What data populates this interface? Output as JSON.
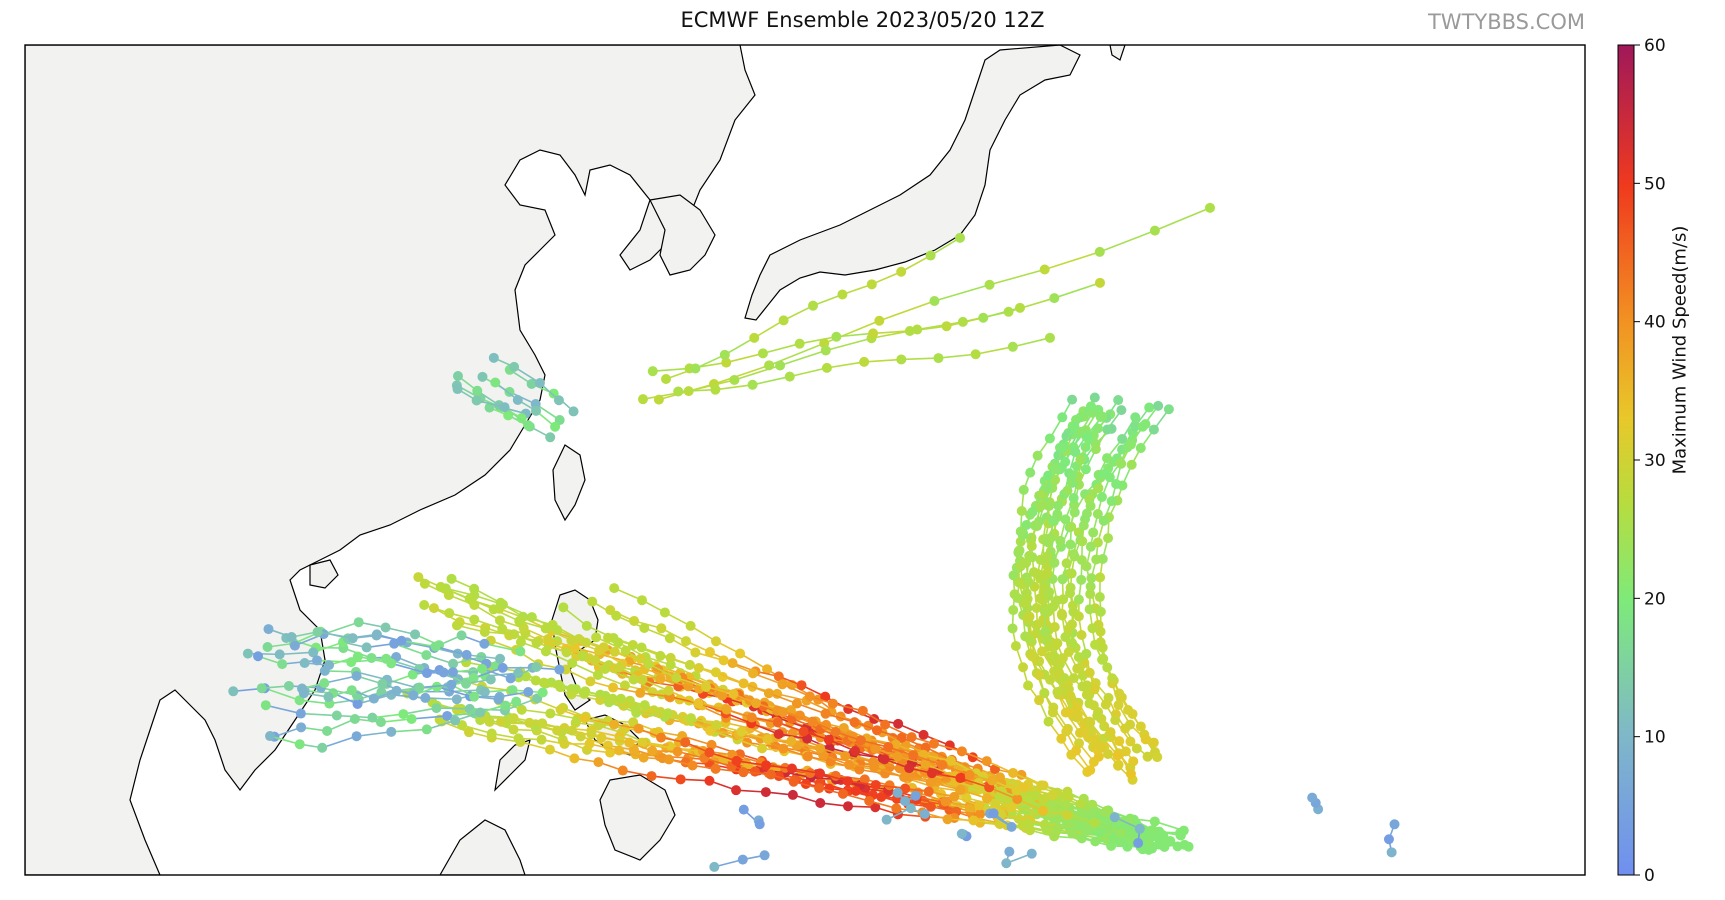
{
  "title": "ECMWF Ensemble 2023/05/20 12Z",
  "watermark": "TWTYBBS.COM",
  "colorbar": {
    "label": "Maximum Wind Speed(m/s)",
    "ticks": [
      "0",
      "10",
      "20",
      "30",
      "40",
      "50",
      "60"
    ],
    "min": 0,
    "max": 60,
    "stops": [
      "#6f8ff0",
      "#7fb8c8",
      "#7eea7a",
      "#b8dc3e",
      "#e8c82a",
      "#f29022",
      "#f03a1e",
      "#a0185a"
    ]
  },
  "map": {
    "land_color": "#f2f2f0",
    "ocean_color": "#ffffff",
    "coast_color": "#000000"
  }
}
